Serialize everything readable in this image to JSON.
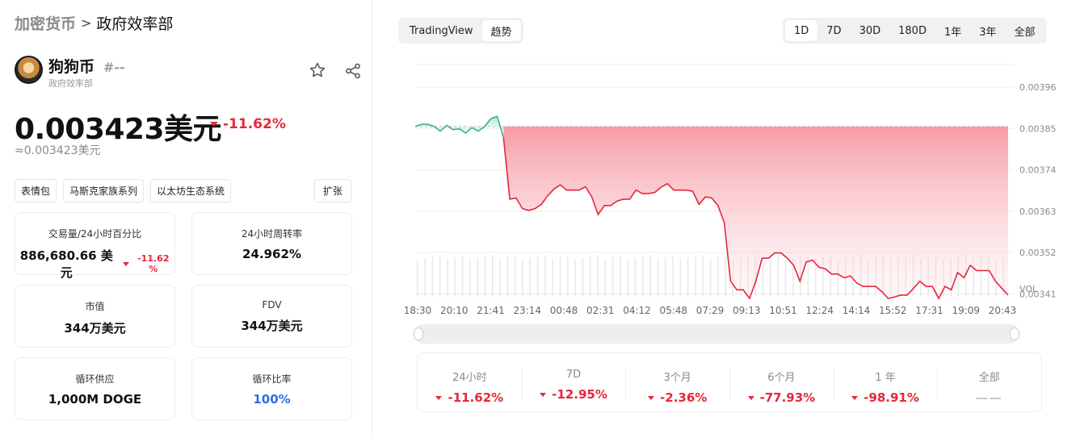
{
  "breadcrumb": {
    "parent": "加密货币",
    "separator": ">",
    "current": "政府效率部"
  },
  "coin": {
    "name": "狗狗币",
    "rank": "#--",
    "subtitle": "政府效率部",
    "price": "0.003423美元",
    "change": "-11.62%",
    "approx": "≈0.003423美元"
  },
  "tags": [
    "表情包",
    "马斯克家族系列",
    "以太坊生态系统"
  ],
  "expand_label": "扩张",
  "stats": {
    "volume": {
      "label": "交易量/24小时百分比",
      "value": "886,680.66 美元",
      "change": "-11.62 %"
    },
    "turnover": {
      "label": "24小时周转率",
      "value": "24.962%"
    },
    "market_cap": {
      "label": "市值",
      "value": "344万美元"
    },
    "fdv": {
      "label": "FDV",
      "value": "344万美元"
    },
    "supply": {
      "label": "循环供应",
      "value": "1,000M DOGE"
    },
    "ratio": {
      "label": "循环比率",
      "value": "100%"
    }
  },
  "chart_tabs": {
    "tradingview": "TradingView",
    "trend": "趋势",
    "active": "趋势"
  },
  "ranges": [
    "1D",
    "7D",
    "30D",
    "180D",
    "1年",
    "3年",
    "全部"
  ],
  "active_range": "1D",
  "chart_data": {
    "type": "area",
    "y_ticks": [
      "0.00396",
      "0.00385",
      "0.00374",
      "0.00363",
      "0.00352",
      "0.00341"
    ],
    "vol_label": "VOL",
    "x_ticks": [
      "18:30",
      "20:10",
      "21:41",
      "23:14",
      "00:48",
      "02:31",
      "04:12",
      "05:48",
      "07:29",
      "09:13",
      "10:51",
      "12:24",
      "14:14",
      "15:52",
      "17:31",
      "19:09",
      "20:43"
    ],
    "ylim": [
      0.003368,
      0.00402
    ],
    "baseline": 0.003855,
    "series": [
      {
        "values": [
          0.003855,
          0.003861,
          0.003861,
          0.003855,
          0.003843,
          0.003858,
          0.003847,
          0.003849,
          0.003838,
          0.003852,
          0.003843,
          0.003855,
          0.003876,
          0.003882,
          0.003826,
          0.003662,
          0.003665,
          0.003637,
          0.003632,
          0.003637,
          0.003648,
          0.003671,
          0.003689,
          0.0037,
          0.003686,
          0.003686,
          0.003686,
          0.003695,
          0.003668,
          0.003621,
          0.003645,
          0.003645,
          0.003657,
          0.003662,
          0.003662,
          0.003686,
          0.003677,
          0.003677,
          0.00368,
          0.003694,
          0.003703,
          0.003686,
          0.003686,
          0.003686,
          0.003683,
          0.003648,
          0.003668,
          0.003665,
          0.003645,
          0.0036,
          0.003444,
          0.003421,
          0.003421,
          0.003398,
          0.003444,
          0.003505,
          0.003505,
          0.003519,
          0.003519,
          0.003505,
          0.003486,
          0.003444,
          0.003495,
          0.0035,
          0.003481,
          0.003477,
          0.003463,
          0.003463,
          0.003453,
          0.003458,
          0.003439,
          0.00343,
          0.00343,
          0.00343,
          0.003416,
          0.003398,
          0.003402,
          0.003407,
          0.003407,
          0.003425,
          0.003444,
          0.00343,
          0.00343,
          0.003398,
          0.00343,
          0.003421,
          0.003467,
          0.003453,
          0.003486,
          0.003472,
          0.003472,
          0.003472,
          0.003444,
          0.003425,
          0.003407
        ]
      }
    ]
  },
  "performance": [
    {
      "label": "24小时",
      "value": "-11.62%"
    },
    {
      "label": "7D",
      "value": "-12.95%"
    },
    {
      "label": "3个月",
      "value": "-2.36%"
    },
    {
      "label": "6个月",
      "value": "-77.93%"
    },
    {
      "label": "1 年",
      "value": "-98.91%"
    },
    {
      "label": "全部",
      "value": "——"
    }
  ],
  "colors": {
    "down": "#e5273a",
    "up": "#3bb08f",
    "accent": "#2b6fe8"
  }
}
